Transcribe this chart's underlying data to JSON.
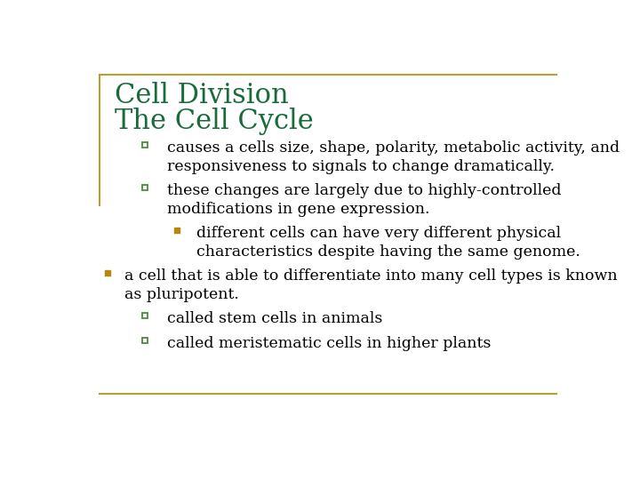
{
  "title_line1": "Cell Division",
  "title_line2": "The Cell Cycle",
  "title_color": "#1a6b3c",
  "title_fontsize": 22,
  "background_color": "#ffffff",
  "border_color": "#b8a030",
  "text_color": "#000000",
  "bullet_color_square": "#4a8a3c",
  "bullet_color_filled": "#b8860b",
  "items": [
    {
      "level": 1,
      "bullet": "square",
      "text": "causes a cells size, shape, polarity, metabolic activity, and\nresponsiveness to signals to change dramatically."
    },
    {
      "level": 1,
      "bullet": "square",
      "text": "these changes are largely due to highly-controlled\nmodifications in gene expression."
    },
    {
      "level": 2,
      "bullet": "filled_square",
      "text": "different cells can have very different physical\ncharacteristics despite having the same genome."
    },
    {
      "level": 0,
      "bullet": "filled_square",
      "text": "a cell that is able to differentiate into many cell types is known\nas pluripotent."
    },
    {
      "level": 1,
      "bullet": "square",
      "text": "called stem cells in animals"
    },
    {
      "level": 1,
      "bullet": "square",
      "text": "called meristematic cells in higher plants"
    }
  ],
  "body_fontsize": 12.5,
  "figsize": [
    7.2,
    5.4
  ],
  "dpi": 100
}
